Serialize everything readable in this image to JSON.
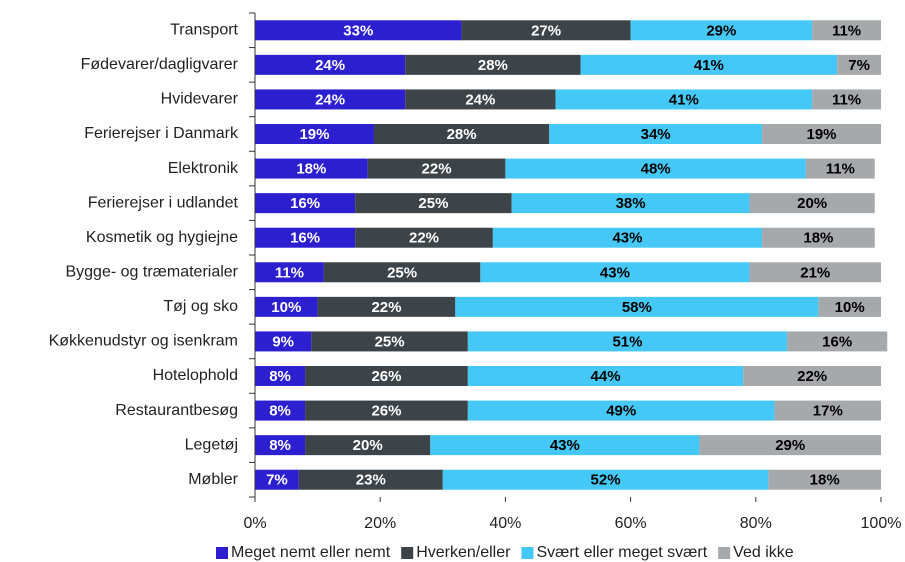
{
  "chart_data": {
    "type": "stacked-barh",
    "categories": [
      "Transport",
      "Fødevarer/dagligvarer",
      "Hvidevarer",
      "Ferierejser i Danmark",
      "Elektronik",
      "Ferierejser i udlandet",
      "Kosmetik og hygiejne",
      "Bygge- og træmaterialer",
      "Tøj og sko",
      "Køkkenudstyr og isenkram",
      "Hotelophold",
      "Restaurantbesøg",
      "Legetøj",
      "Møbler"
    ],
    "series": [
      {
        "name": "Meget nemt eller nemt",
        "color": "#2b1fd0",
        "values": [
          33,
          24,
          24,
          19,
          18,
          16,
          16,
          11,
          10,
          9,
          8,
          8,
          8,
          7
        ],
        "value_labels": [
          "33%",
          "24%",
          "24%",
          "19%",
          "18%",
          "16%",
          "16%",
          "11%",
          "10%",
          "9%",
          "8%",
          "8%",
          "8%",
          "7%"
        ]
      },
      {
        "name": "Hverken/eller",
        "color": "#3d4449",
        "values": [
          27,
          28,
          24,
          28,
          22,
          25,
          22,
          25,
          22,
          25,
          26,
          26,
          20,
          23
        ],
        "value_labels": [
          "27%",
          "28%",
          "24%",
          "28%",
          "22%",
          "25%",
          "22%",
          "25%",
          "22%",
          "25%",
          "26%",
          "26%",
          "20%",
          "23%"
        ]
      },
      {
        "name": "Svært eller meget svært",
        "color": "#45c8f5",
        "values": [
          29,
          41,
          41,
          34,
          48,
          38,
          43,
          43,
          58,
          51,
          44,
          49,
          43,
          52
        ],
        "value_labels": [
          "29%",
          "41%",
          "41%",
          "34%",
          "48%",
          "38%",
          "43%",
          "43%",
          "58%",
          "51%",
          "44%",
          "49%",
          "43%",
          "52%"
        ]
      },
      {
        "name": "Ved ikke",
        "color": "#a6a9ac",
        "values": [
          11,
          7,
          11,
          19,
          11,
          20,
          18,
          21,
          10,
          16,
          22,
          17,
          29,
          18
        ],
        "value_labels": [
          "11%",
          "7%",
          "11%",
          "19%",
          "11%",
          "20%",
          "18%",
          "21%",
          "10%",
          "16%",
          "22%",
          "17%",
          "29%",
          "18%"
        ]
      }
    ],
    "xlim": [
      0,
      100
    ],
    "xticks": [
      {
        "value": 0,
        "label": "0%"
      },
      {
        "value": 20,
        "label": "20%"
      },
      {
        "value": 40,
        "label": "40%"
      },
      {
        "value": 60,
        "label": "60%"
      },
      {
        "value": 80,
        "label": "80%"
      },
      {
        "value": 100,
        "label": "100%"
      }
    ],
    "legend": "bottom"
  }
}
